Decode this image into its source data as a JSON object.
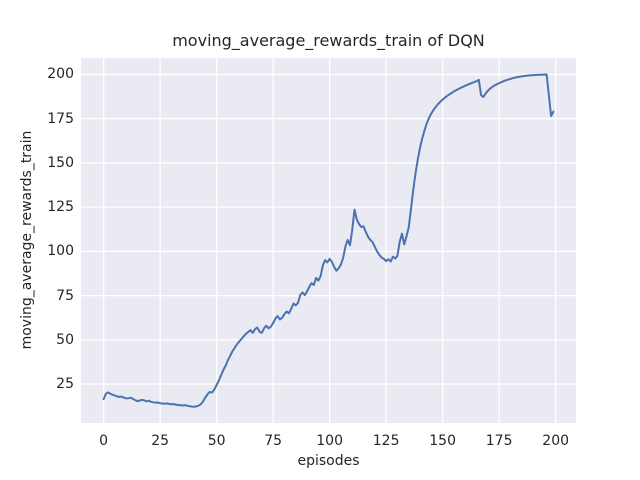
{
  "chart_data": {
    "type": "line",
    "title": "moving_average_rewards_train of DQN",
    "xlabel": "episodes",
    "ylabel": "moving_average_rewards_train",
    "x_ticks": [
      0,
      25,
      50,
      75,
      100,
      125,
      150,
      175,
      200
    ],
    "y_ticks": [
      25,
      50,
      75,
      100,
      125,
      150,
      175,
      200
    ],
    "xlim": [
      -10,
      209
    ],
    "ylim": [
      3,
      209.3
    ],
    "grid": true,
    "legend_position": "none",
    "colors": {
      "line": "#4C72B0",
      "plot_bg": "#EAEAF2",
      "grid": "#FFFFFF",
      "text": "#262626",
      "figure_bg": "#FFFFFF"
    },
    "series": [
      {
        "name": "moving_average_rewards_train of DQN",
        "x_start": 0,
        "x_step": 1,
        "values": [
          16.5,
          19.5,
          20.3,
          19.5,
          19.0,
          18.5,
          18.1,
          17.7,
          18.0,
          17.3,
          16.9,
          17.0,
          17.3,
          16.6,
          15.9,
          15.4,
          15.7,
          16.1,
          15.8,
          15.2,
          15.6,
          15.0,
          14.7,
          14.5,
          14.6,
          14.2,
          14.0,
          13.9,
          14.1,
          13.8,
          13.6,
          13.7,
          13.4,
          13.2,
          13.0,
          12.9,
          13.1,
          12.8,
          12.5,
          12.3,
          12.2,
          12.4,
          12.8,
          13.6,
          15.2,
          17.4,
          19.3,
          20.6,
          20.2,
          22.0,
          24.5,
          27.0,
          30.0,
          33.0,
          35.5,
          38.5,
          41.0,
          43.5,
          45.5,
          47.5,
          49.0,
          50.5,
          52.0,
          53.5,
          54.5,
          55.5,
          54.0,
          56.0,
          57.0,
          54.5,
          54.0,
          56.5,
          58.0,
          56.5,
          57.5,
          59.5,
          62.0,
          63.5,
          61.5,
          62.5,
          64.5,
          66.0,
          65.0,
          67.5,
          70.5,
          69.5,
          70.8,
          75.3,
          76.8,
          75.3,
          77.3,
          80.0,
          82.0,
          81.0,
          85.0,
          83.5,
          86.0,
          92.0,
          95.0,
          93.8,
          95.8,
          94.0,
          91.2,
          89.0,
          90.5,
          92.5,
          96.5,
          103.0,
          106.5,
          103.5,
          112.0,
          123.6,
          118.0,
          115.5,
          113.8,
          114.2,
          111.0,
          108.2,
          106.5,
          105.2,
          102.6,
          100.0,
          98.0,
          96.5,
          95.8,
          94.5,
          95.5,
          94.3,
          97.0,
          96.0,
          97.5,
          105.5,
          110.0,
          104.0,
          108.5,
          113.5,
          124.0,
          135.0,
          144.0,
          152.0,
          158.5,
          164.0,
          168.5,
          172.5,
          175.5,
          178.0,
          180.0,
          181.8,
          183.3,
          184.6,
          185.8,
          186.9,
          187.9,
          188.8,
          189.6,
          190.4,
          191.1,
          191.8,
          192.4,
          193.0,
          193.6,
          194.2,
          194.7,
          195.2,
          195.7,
          196.2,
          196.9,
          188.3,
          187.3,
          189.2,
          190.8,
          192.0,
          193.0,
          193.8,
          194.5,
          195.1,
          195.7,
          196.2,
          196.7,
          197.1,
          197.5,
          197.9,
          198.2,
          198.5,
          198.7,
          198.9,
          199.1,
          199.3,
          199.4,
          199.5,
          199.6,
          199.7,
          199.75,
          199.8,
          199.85,
          199.9,
          199.95,
          188.0,
          176.5,
          179.0
        ]
      }
    ]
  }
}
